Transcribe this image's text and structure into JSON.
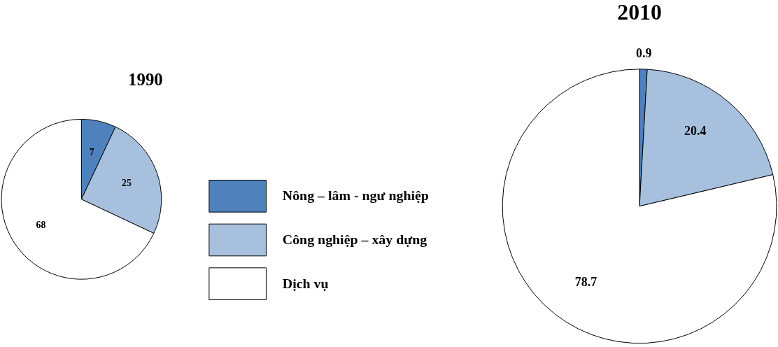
{
  "chart_data": {
    "type": "pie",
    "categories": [
      "Nông – lâm - ngư nghiệp",
      "Công nghiệp – xây dựng",
      "Dịch vụ"
    ],
    "colors": [
      "#4f81bd",
      "#a7c0de",
      "#ffffff"
    ],
    "series": [
      {
        "name": "1990",
        "values": [
          7,
          25,
          68
        ]
      },
      {
        "name": "2010",
        "values": [
          0.9,
          20.4,
          78.7
        ]
      }
    ],
    "data_labels": true,
    "legend": "bottom"
  }
}
